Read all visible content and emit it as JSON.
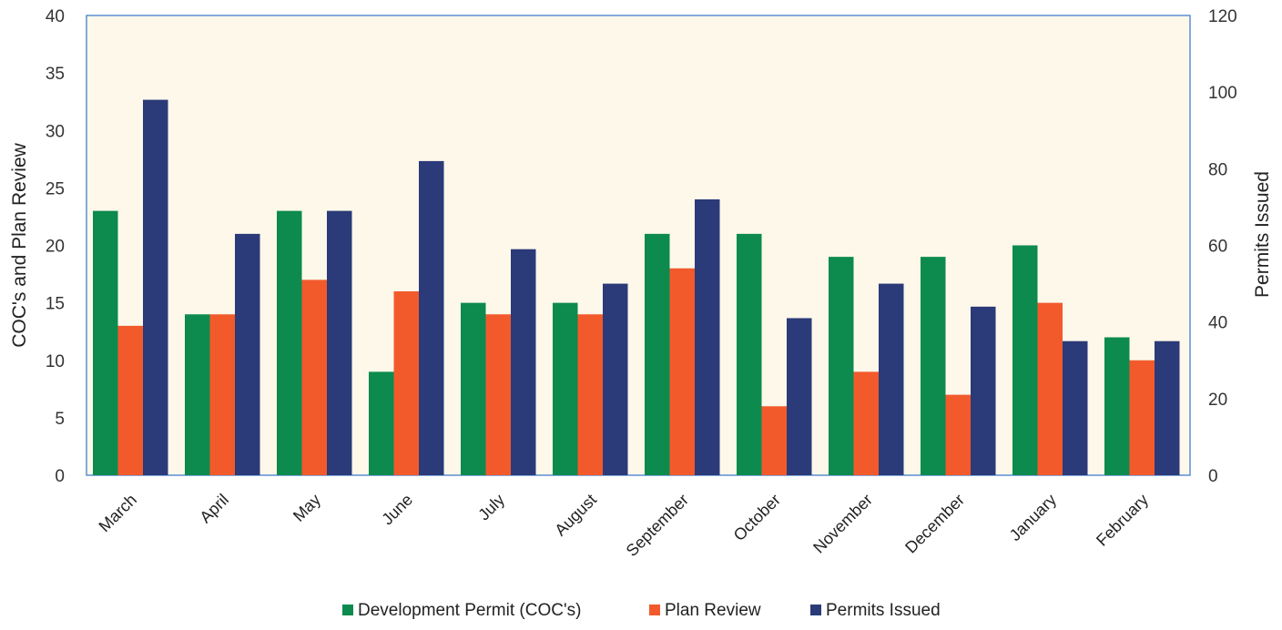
{
  "chart_data": {
    "type": "bar",
    "categories": [
      "March",
      "April",
      "May",
      "June",
      "July",
      "August",
      "September",
      "October",
      "November",
      "December",
      "January",
      "February"
    ],
    "series": [
      {
        "name": "Development Permit (COC's)",
        "axis": "left",
        "color": "#0d8a4e",
        "values": [
          23,
          14,
          23,
          9,
          15,
          15,
          21,
          21,
          19,
          19,
          20,
          12
        ]
      },
      {
        "name": "Plan Review",
        "axis": "left",
        "color": "#f25a2c",
        "values": [
          13,
          14,
          17,
          16,
          14,
          14,
          18,
          6,
          9,
          7,
          15,
          10
        ]
      },
      {
        "name": "Permits Issued",
        "axis": "right",
        "color": "#2b3a78",
        "values": [
          98,
          63,
          69,
          82,
          59,
          50,
          72,
          41,
          50,
          44,
          35,
          35
        ]
      }
    ],
    "ylabel": "COC's and Plan Review",
    "y2label": "Permits Issued",
    "ylim": [
      0,
      40
    ],
    "y2lim": [
      0,
      120
    ],
    "yticks": [
      0,
      5,
      10,
      15,
      20,
      25,
      30,
      35,
      40
    ],
    "y2ticks": [
      0,
      20,
      40,
      60,
      80,
      100,
      120
    ],
    "legend_position": "bottom",
    "plot_background": "#fdf8ea",
    "frame_color": "#5b8fd0"
  }
}
